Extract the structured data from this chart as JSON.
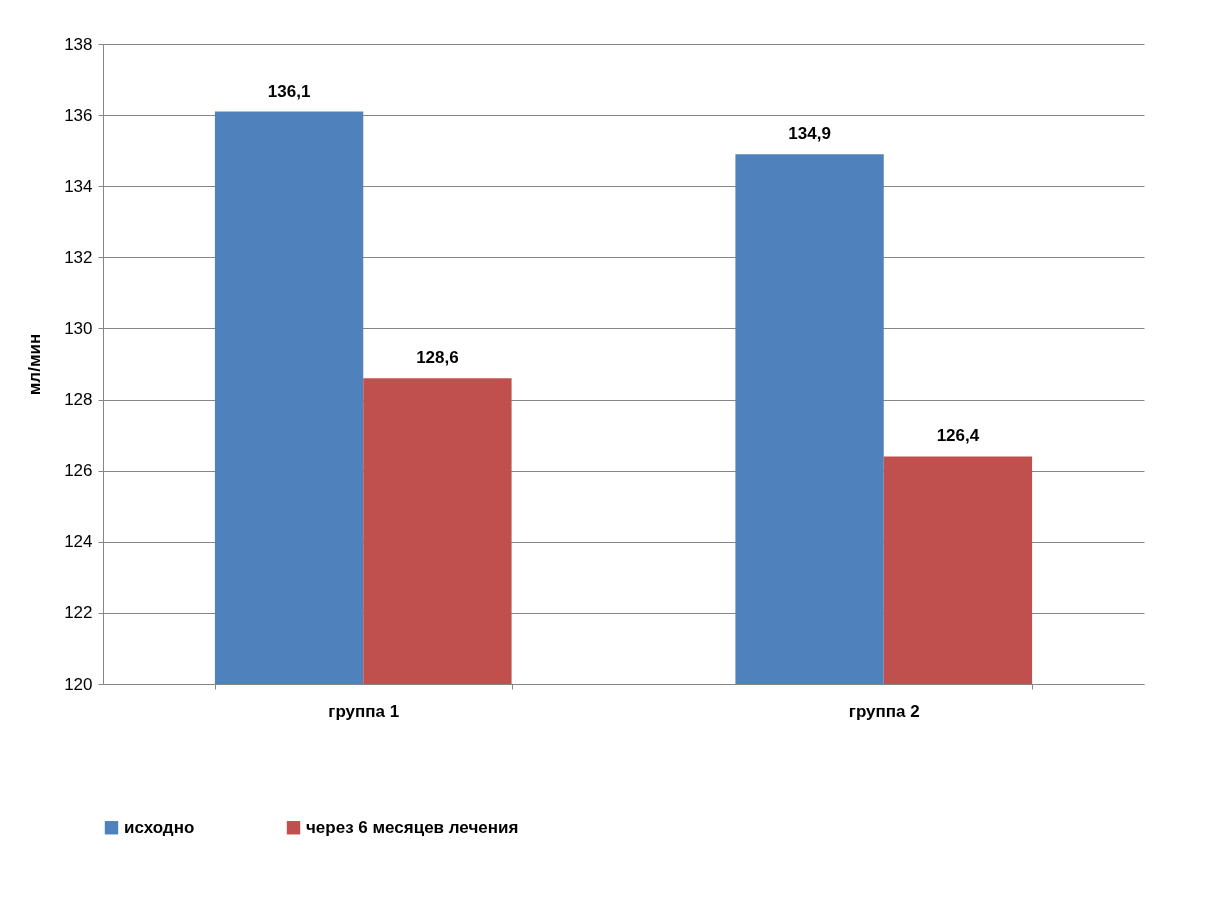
{
  "chart_data": {
    "type": "bar",
    "ylabel": "мл/мин",
    "categories": [
      "группа 1",
      "группа 2"
    ],
    "series": [
      {
        "name": "исходно",
        "color": "#4f81bd",
        "values": [
          136.1,
          134.9
        ],
        "value_labels": [
          "136,1",
          "134,9"
        ]
      },
      {
        "name": "через 6 месяцев лечения",
        "color": "#c0504d",
        "values": [
          128.6,
          126.4
        ],
        "value_labels": [
          "128,6",
          "126,4"
        ]
      }
    ],
    "ylim": [
      120,
      138
    ],
    "yticks": [
      120,
      122,
      124,
      126,
      128,
      130,
      132,
      134,
      136,
      138
    ],
    "grid": "y",
    "legend": "bottom"
  }
}
